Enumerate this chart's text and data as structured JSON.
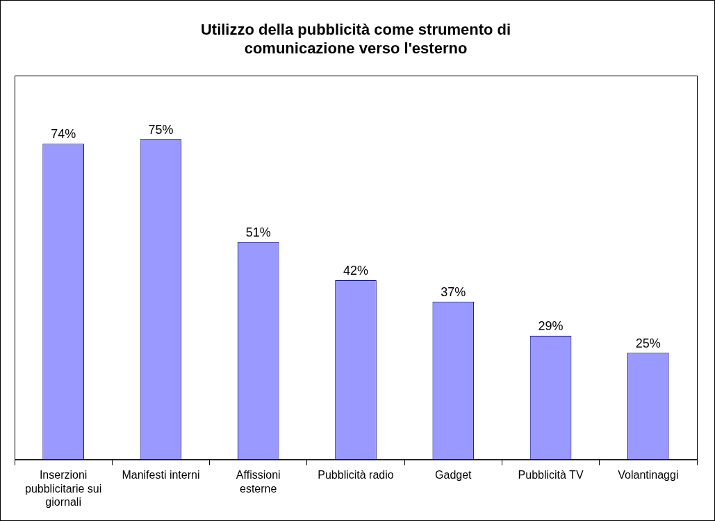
{
  "chart_data": {
    "type": "bar",
    "title": "Utilizzo della pubblicità come strumento di comunicazione verso l'esterno",
    "categories": [
      "Inserzioni pubblicitarie sui giornali",
      "Manifesti interni",
      "Affissioni esterne",
      "Pubblicità radio",
      "Gadget",
      "Pubblicità TV",
      "Volantinaggi"
    ],
    "values": [
      74,
      75,
      51,
      42,
      37,
      29,
      25
    ],
    "value_labels": [
      "74%",
      "75%",
      "51%",
      "42%",
      "37%",
      "29%",
      "25%"
    ],
    "color": "#9999ff",
    "grid": false,
    "legend": false
  }
}
